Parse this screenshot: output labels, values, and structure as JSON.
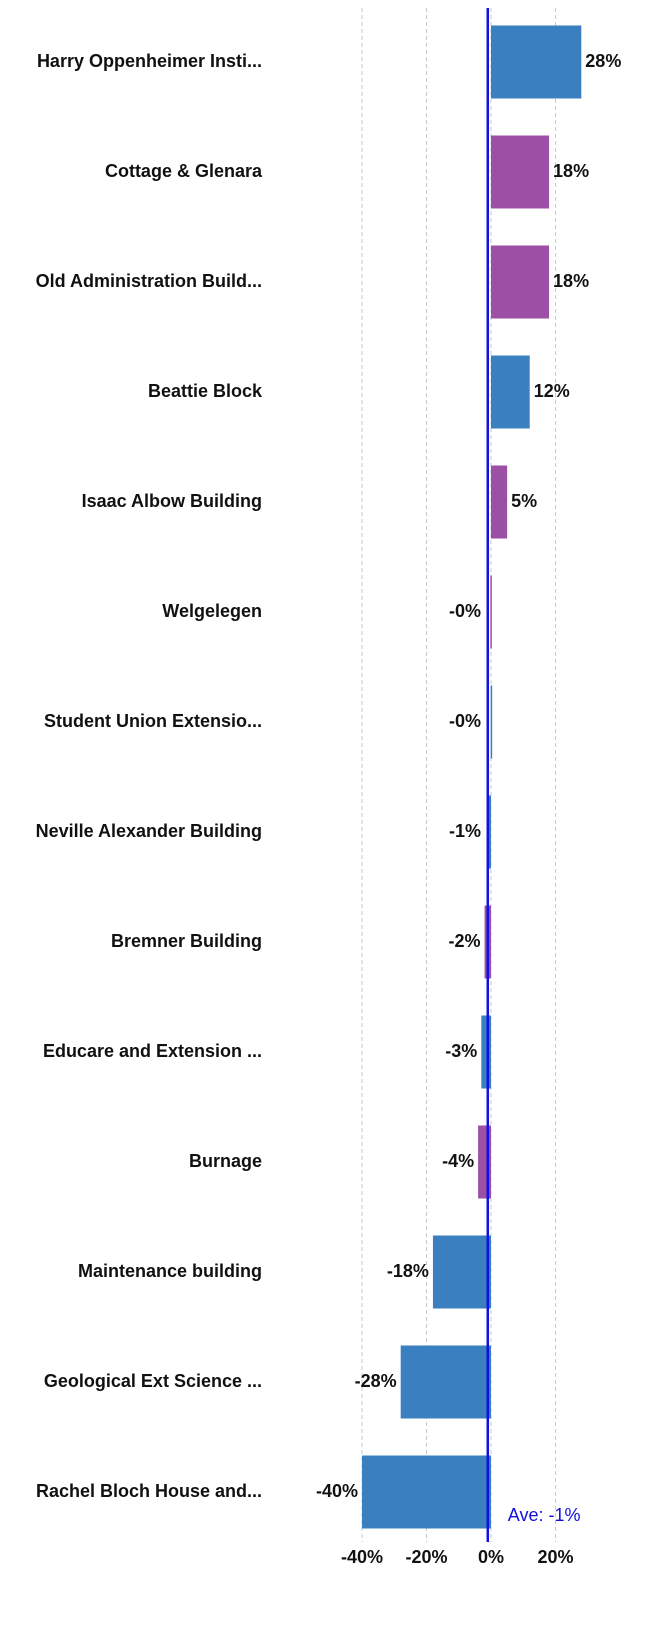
{
  "chart_data": {
    "type": "barh",
    "categories": [
      "Harry Oppenheimer Insti...",
      "Cottage & Glenara",
      "Old Administration Build...",
      "Beattie Block",
      "Isaac Albow Building",
      "Welgelegen",
      "Student Union Extensio...",
      "Neville Alexander Building",
      "Bremner Building",
      "Educare and Extension ...",
      "Burnage",
      "Maintenance building",
      "Geological Ext Science ...",
      "Rachel Bloch House and..."
    ],
    "values": [
      28,
      18,
      18,
      12,
      5,
      -0.2,
      -0.1,
      -1,
      -2,
      -3,
      -4,
      -18,
      -28,
      -40
    ],
    "value_labels": [
      "28%",
      "18%",
      "18%",
      "12%",
      "5%",
      "-0%",
      "-0%",
      "-1%",
      "-2%",
      "-3%",
      "-4%",
      "-18%",
      "-28%",
      "-40%"
    ],
    "colors": [
      "#3a7fbf",
      "#9b4fa5",
      "#9b4fa5",
      "#3a7fbf",
      "#9b4fa5",
      "#9b4fa5",
      "#3a7fbf",
      "#3a7fbf",
      "#9b4fa5",
      "#3a7fbf",
      "#9b4fa5",
      "#3a7fbf",
      "#3a7fbf",
      "#3a7fbf"
    ],
    "xlim": [
      -40,
      40
    ],
    "xticks": [
      {
        "value": -40,
        "label": "-40%"
      },
      {
        "value": -20,
        "label": "-20%"
      },
      {
        "value": 0,
        "label": "0%"
      },
      {
        "value": 20,
        "label": "20%"
      }
    ],
    "grid": true,
    "average": {
      "value": -1,
      "label": "Ave: -1%",
      "color": "#1010e0"
    }
  }
}
